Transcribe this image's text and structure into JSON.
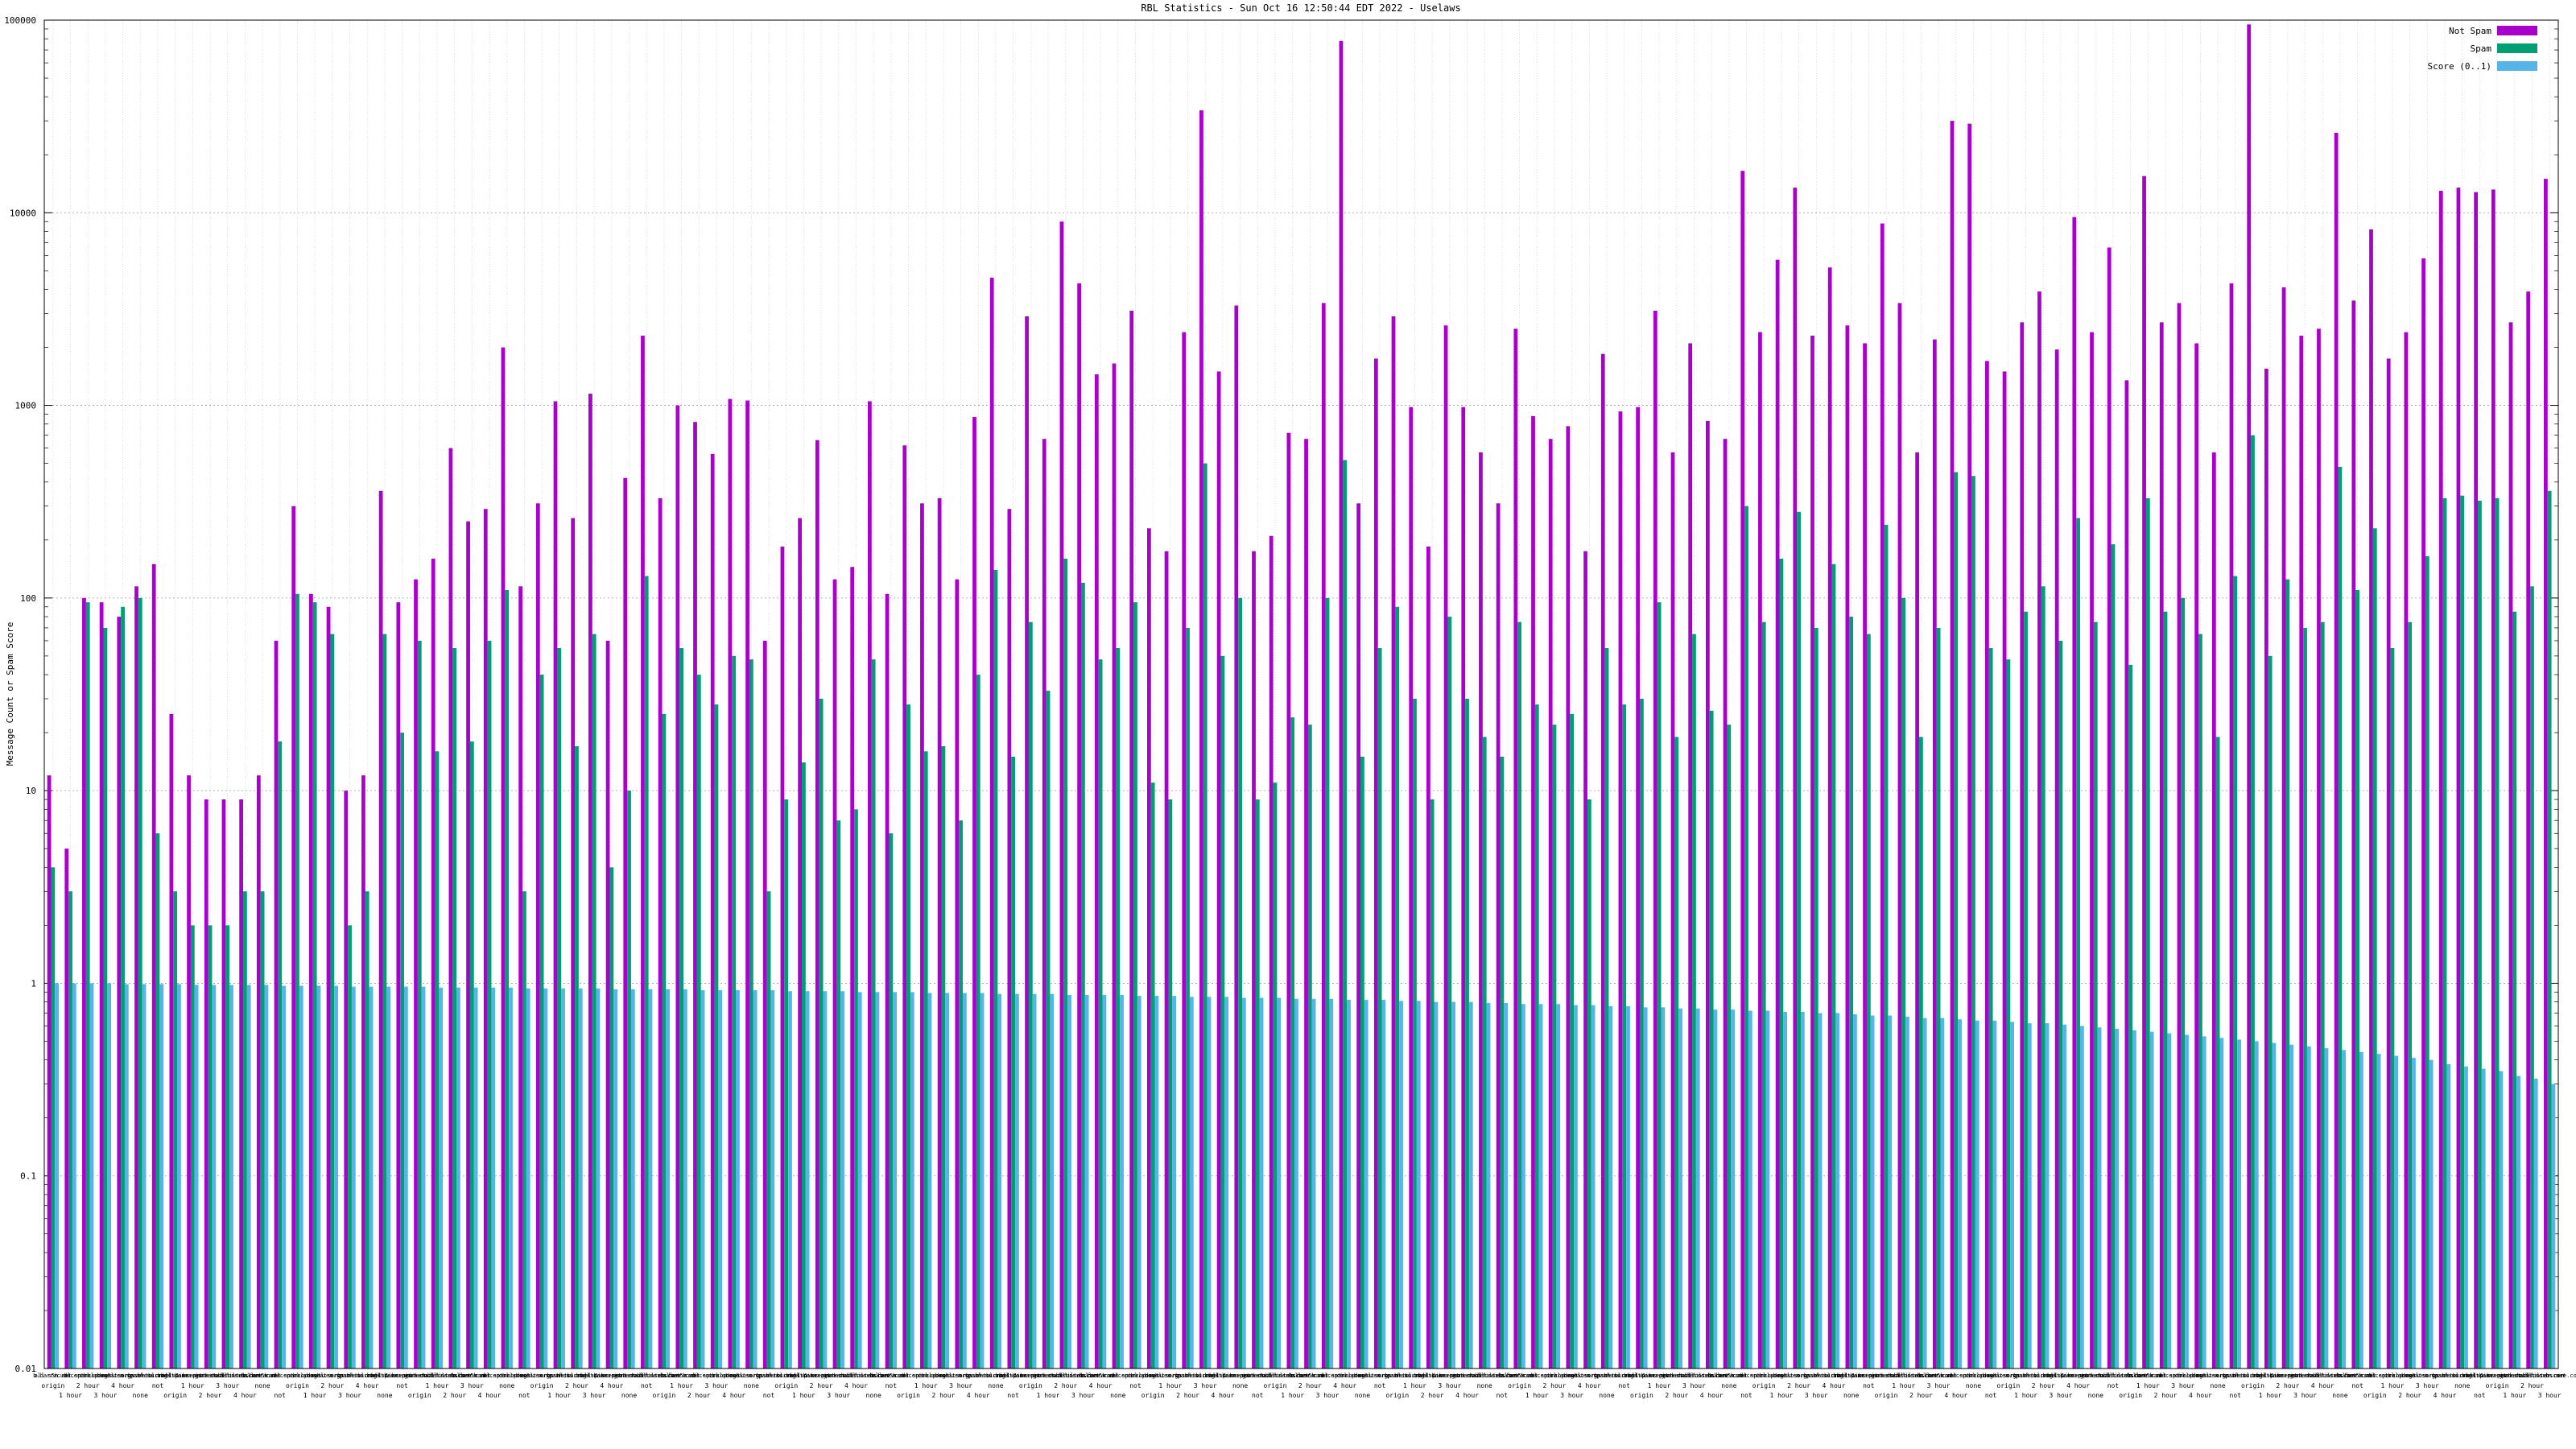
{
  "page": {
    "title": "RBL Statistics - Sun Oct 16 12:50:44 EDT 2022 - Uselaws"
  },
  "chart_data": {
    "type": "bar",
    "y_scale": "log",
    "ylim": [
      0.01,
      100000
    ],
    "title": "RBL Statistics - Sun Oct 16 12:50:44 EDT 2022 - Uselaws",
    "ylabel": "Message Count or Spam Score",
    "xlabel": "",
    "grid": true,
    "legend_position": "top-right",
    "ytick_labels": [
      "100000",
      "10000",
      "1000",
      "100",
      "10",
      "1",
      "0.1",
      "0.01"
    ],
    "group_count": 144,
    "category_host_cycle": [
      "all.s5h.net",
      "b.barracudacentral.org",
      "bl.spamcop.net",
      "cbl.abuseat.org",
      "dnsbl.sorbs.net",
      "zen.spamhaus.org",
      "psbl.surriel.com",
      "bl.mailspike.net",
      "dnsbl-1.uceprotect.net",
      "hostkarma.junkemailfilter.com",
      "spam.dnsbl.sorbs.net",
      "ubl.unsubscore.com"
    ],
    "category_sub_cycle": [
      "origin",
      "1 hour",
      "2 hour",
      "3 hour",
      "4 hour",
      "none",
      "not"
    ],
    "series": [
      {
        "name": "Not Spam",
        "color": "#aa00cc",
        "values": [
          12,
          5,
          100,
          95,
          80,
          115,
          150,
          25,
          12,
          9,
          9,
          9,
          12,
          60,
          300,
          105,
          90,
          10,
          12,
          360,
          95,
          125,
          160,
          600,
          250,
          290,
          2000,
          115,
          310,
          1050,
          260,
          1150,
          60,
          420,
          2300,
          330,
          1000,
          820,
          560,
          1080,
          1060,
          60,
          185,
          260,
          660,
          125,
          145,
          1050,
          105,
          620,
          310,
          330,
          125,
          870,
          4600,
          290,
          2900,
          670,
          9000,
          4300,
          1450,
          1650,
          3100,
          230,
          175,
          2400,
          34000,
          1500,
          3300,
          175,
          210,
          720,
          670,
          3400,
          78000,
          310,
          1750,
          2900,
          980,
          185,
          2600,
          980,
          570,
          310,
          2500,
          880,
          670,
          780,
          175,
          1850,
          930,
          980,
          3100,
          570,
          2100,
          830,
          670,
          16500,
          2400,
          5700,
          13500,
          2300,
          5200,
          2600,
          2100,
          8800,
          3400,
          570,
          2200,
          30000,
          29000,
          1700,
          1500,
          2700,
          3900,
          1950,
          9500,
          2400,
          6600,
          1350,
          15500,
          2700,
          3400,
          2100,
          570,
          4300,
          95000,
          1550,
          4100,
          2300,
          2500,
          26000,
          3500,
          8200,
          1750,
          2400,
          5800,
          13000,
          13500,
          12800,
          13200,
          2700,
          3900,
          15000
        ]
      },
      {
        "name": "Spam",
        "color": "#009e73",
        "values": [
          4,
          3,
          95,
          70,
          90,
          100,
          6,
          3,
          2,
          2,
          2,
          3,
          3,
          18,
          105,
          95,
          65,
          2,
          3,
          65,
          20,
          60,
          16,
          55,
          18,
          60,
          110,
          3,
          40,
          55,
          17,
          65,
          4,
          10,
          130,
          25,
          55,
          40,
          28,
          50,
          48,
          3,
          9,
          14,
          30,
          7,
          8,
          48,
          6,
          28,
          16,
          17,
          7,
          40,
          140,
          15,
          75,
          33,
          160,
          120,
          48,
          55,
          95,
          11,
          9,
          70,
          500,
          50,
          100,
          9,
          11,
          24,
          22,
          100,
          520,
          15,
          55,
          90,
          30,
          9,
          80,
          30,
          19,
          15,
          75,
          28,
          22,
          25,
          9,
          55,
          28,
          30,
          95,
          19,
          65,
          26,
          22,
          300,
          75,
          160,
          280,
          70,
          150,
          80,
          65,
          240,
          100,
          19,
          70,
          450,
          430,
          55,
          48,
          85,
          115,
          60,
          260,
          75,
          190,
          45,
          330,
          85,
          100,
          65,
          19,
          130,
          700,
          50,
          125,
          70,
          75,
          480,
          110,
          230,
          55,
          75,
          165,
          330,
          340,
          320,
          330,
          85,
          115,
          360
        ]
      },
      {
        "name": "Score (0..1)",
        "color": "#56b4e9",
        "values": [
          1.0,
          1.0,
          1.0,
          1.0,
          0.99,
          0.99,
          0.99,
          0.99,
          0.98,
          0.98,
          0.98,
          0.98,
          0.98,
          0.97,
          0.97,
          0.97,
          0.97,
          0.96,
          0.96,
          0.96,
          0.96,
          0.96,
          0.95,
          0.95,
          0.95,
          0.95,
          0.95,
          0.94,
          0.94,
          0.94,
          0.94,
          0.94,
          0.93,
          0.93,
          0.93,
          0.93,
          0.93,
          0.92,
          0.92,
          0.92,
          0.92,
          0.92,
          0.91,
          0.91,
          0.91,
          0.91,
          0.9,
          0.9,
          0.9,
          0.9,
          0.89,
          0.89,
          0.89,
          0.89,
          0.88,
          0.88,
          0.88,
          0.88,
          0.87,
          0.87,
          0.87,
          0.87,
          0.86,
          0.86,
          0.86,
          0.85,
          0.85,
          0.85,
          0.84,
          0.84,
          0.84,
          0.83,
          0.83,
          0.83,
          0.82,
          0.82,
          0.82,
          0.81,
          0.81,
          0.8,
          0.8,
          0.8,
          0.79,
          0.79,
          0.78,
          0.78,
          0.78,
          0.77,
          0.77,
          0.76,
          0.76,
          0.75,
          0.75,
          0.74,
          0.74,
          0.73,
          0.73,
          0.72,
          0.72,
          0.71,
          0.71,
          0.7,
          0.7,
          0.69,
          0.68,
          0.68,
          0.67,
          0.66,
          0.66,
          0.65,
          0.64,
          0.64,
          0.63,
          0.62,
          0.62,
          0.61,
          0.6,
          0.59,
          0.58,
          0.57,
          0.56,
          0.55,
          0.54,
          0.53,
          0.52,
          0.51,
          0.5,
          0.49,
          0.48,
          0.47,
          0.46,
          0.45,
          0.44,
          0.43,
          0.42,
          0.41,
          0.4,
          0.38,
          0.37,
          0.36,
          0.35,
          0.33,
          0.32,
          0.3
        ]
      }
    ]
  }
}
